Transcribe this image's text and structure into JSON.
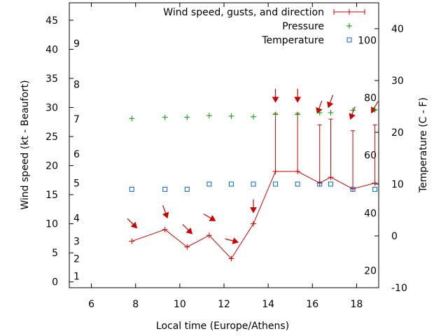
{
  "chart_data": {
    "type": "line",
    "title": "",
    "xlabel": "Local time (Europe/Athens)",
    "ylabel_left": "Wind speed (kt - Beaufort)",
    "ylabel_right": "Temperature (C - F)",
    "xlim": [
      5,
      19
    ],
    "ylim_left": [
      -1,
      48
    ],
    "ylim_right": [
      -10,
      45
    ],
    "x_ticks": [
      6,
      8,
      10,
      12,
      14,
      16,
      18
    ],
    "y_ticks_left": [
      0,
      5,
      10,
      15,
      20,
      25,
      30,
      35,
      40,
      45
    ],
    "y_ticks_right": [
      -10,
      0,
      10,
      20,
      30,
      40
    ],
    "beaufort_labels": [
      {
        "label": "1",
        "kt": 1
      },
      {
        "label": "2",
        "kt": 4
      },
      {
        "label": "3",
        "kt": 7
      },
      {
        "label": "4",
        "kt": 11
      },
      {
        "label": "5",
        "kt": 17
      },
      {
        "label": "6",
        "kt": 22
      },
      {
        "label": "7",
        "kt": 28
      },
      {
        "label": "8",
        "kt": 34
      },
      {
        "label": "9",
        "kt": 41
      }
    ],
    "fahrenheit_labels": [
      {
        "label": "20",
        "c": -6.7
      },
      {
        "label": "40",
        "c": 4.4
      },
      {
        "label": "60",
        "c": 15.6
      },
      {
        "label": "80",
        "c": 26.7
      },
      {
        "label": "100",
        "c": 37.8
      }
    ],
    "series": [
      {
        "name": "Wind speed, gusts, and direction",
        "color": "#cc0000",
        "x": [
          7.83,
          9.33,
          10.33,
          11.33,
          12.33,
          13.33,
          14.33,
          15.33,
          16.33,
          16.83,
          17.83,
          18.83
        ],
        "values": [
          7,
          9,
          6,
          8,
          4,
          10,
          19,
          19,
          17,
          18,
          16,
          17
        ],
        "gusts": [
          null,
          null,
          null,
          null,
          null,
          null,
          29,
          29,
          27,
          28,
          26,
          27
        ],
        "direction_deg": [
          315,
          340,
          315,
          300,
          285,
          0,
          0,
          0,
          20,
          20,
          20,
          30
        ]
      },
      {
        "name": "Pressure",
        "color": "#009900",
        "x": [
          7.83,
          9.33,
          10.33,
          11.33,
          12.33,
          13.33,
          14.33,
          15.33,
          16.33,
          16.83,
          17.83,
          18.83
        ],
        "values": [
          28.1,
          28.3,
          28.3,
          28.6,
          28.5,
          28.4,
          28.8,
          28.8,
          29.1,
          29.1,
          29.5,
          29.6
        ]
      },
      {
        "name": "Temperature",
        "color": "#0066cc",
        "x": [
          7.83,
          9.33,
          10.33,
          11.33,
          12.33,
          13.33,
          14.33,
          15.33,
          16.33,
          16.83,
          17.83,
          18.83
        ],
        "values": [
          9,
          9,
          9,
          10,
          10,
          10,
          10,
          10,
          10,
          10,
          9,
          9
        ]
      }
    ]
  }
}
